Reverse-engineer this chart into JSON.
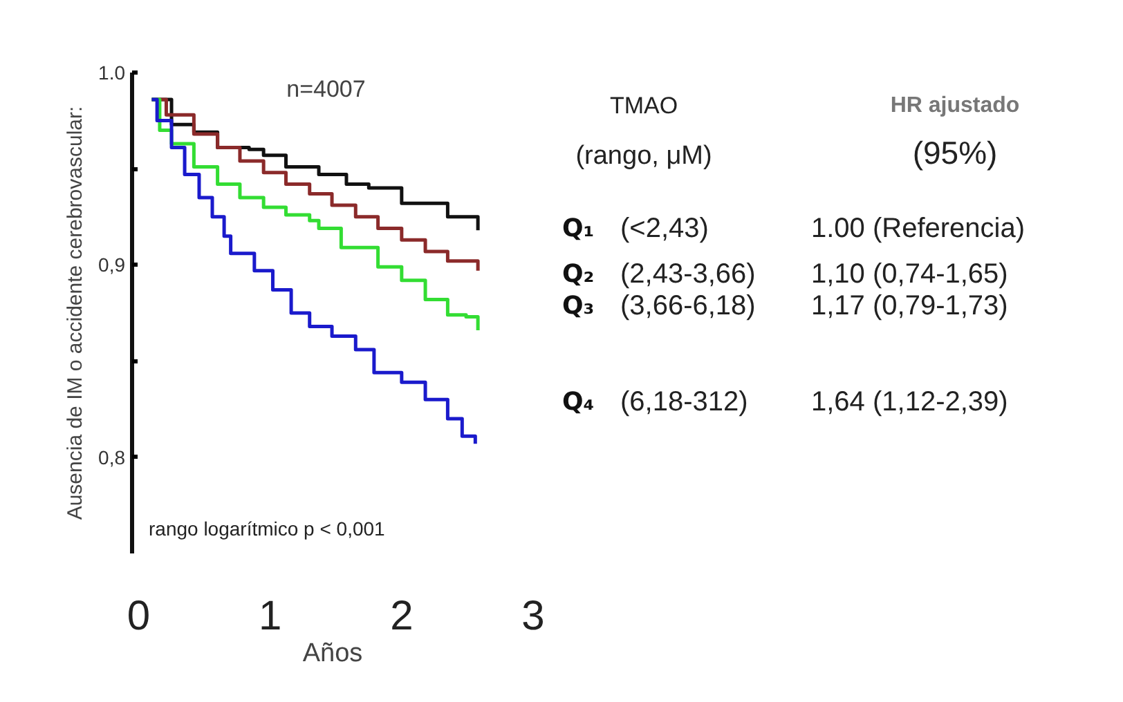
{
  "chart_data": {
    "type": "step",
    "ylabel": "Ausencia de IM o accidente cerebrovascular:",
    "xlabel": "Años",
    "xlim": [
      -0.05,
      3
    ],
    "xticks": [
      0,
      1,
      2,
      3
    ],
    "ylim": [
      0.75,
      1.0
    ],
    "yticks": [
      {
        "value": 1.0,
        "label": "1.0"
      },
      {
        "value": 0.95,
        "label": null
      },
      {
        "value": 0.9,
        "label": "0,9"
      },
      {
        "value": 0.85,
        "label": null
      },
      {
        "value": 0.8,
        "label": "0,8"
      }
    ],
    "series": [
      {
        "name": "Q₁",
        "color": "#111111",
        "x": [
          0.1,
          0.25,
          0.42,
          0.6,
          0.84,
          0.95,
          1.12,
          1.37,
          1.58,
          1.75,
          2.0,
          2.35,
          2.58
        ],
        "values": [
          0.986,
          0.973,
          0.969,
          0.961,
          0.96,
          0.957,
          0.951,
          0.947,
          0.942,
          0.94,
          0.932,
          0.925,
          0.918
        ]
      },
      {
        "name": "Q₂",
        "color": "#8b2a2a",
        "x": [
          0.1,
          0.21,
          0.42,
          0.6,
          0.77,
          0.95,
          1.12,
          1.3,
          1.47,
          1.65,
          1.82,
          2.0,
          2.18,
          2.35,
          2.58
        ],
        "values": [
          0.986,
          0.978,
          0.968,
          0.961,
          0.954,
          0.948,
          0.942,
          0.937,
          0.931,
          0.925,
          0.919,
          0.913,
          0.907,
          0.902,
          0.897
        ]
      },
      {
        "name": "Q₃",
        "color": "#33dd33",
        "x": [
          0.1,
          0.16,
          0.25,
          0.42,
          0.6,
          0.77,
          0.95,
          1.12,
          1.3,
          1.37,
          1.54,
          1.82,
          2.0,
          2.18,
          2.35,
          2.49,
          2.58
        ],
        "values": [
          0.986,
          0.97,
          0.963,
          0.951,
          0.942,
          0.935,
          0.93,
          0.926,
          0.923,
          0.919,
          0.909,
          0.899,
          0.892,
          0.882,
          0.874,
          0.873,
          0.866
        ]
      },
      {
        "name": "Q₄",
        "color": "#1a1acc",
        "x": [
          0.1,
          0.14,
          0.25,
          0.35,
          0.46,
          0.56,
          0.65,
          0.7,
          0.88,
          1.02,
          1.16,
          1.3,
          1.47,
          1.65,
          1.79,
          2.0,
          2.18,
          2.35,
          2.46,
          2.56
        ],
        "values": [
          0.986,
          0.975,
          0.961,
          0.947,
          0.935,
          0.925,
          0.915,
          0.906,
          0.897,
          0.887,
          0.875,
          0.868,
          0.863,
          0.856,
          0.844,
          0.839,
          0.83,
          0.82,
          0.811,
          0.807
        ]
      }
    ],
    "annotations": [
      "n=4007",
      "rango logarítmico p < 0,001",
      "TMAO",
      "(rango, μM)",
      "HR ajustado",
      "(95%)",
      "(<2,43)",
      "1.00 (Referencia)",
      "(2,43-3,66)",
      "1,10 (0,74-1,65)",
      "(3,66-6,18)",
      "1,17 (0,79-1,73)",
      "(6,18-312)",
      "1,64 (1,12-2,39)"
    ]
  }
}
